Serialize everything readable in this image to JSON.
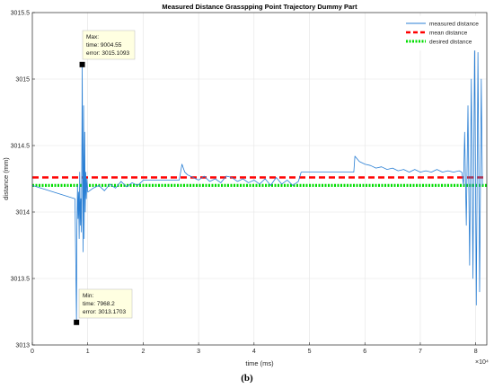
{
  "chart_data": {
    "type": "line",
    "title": "Measured Distance Grasspping Point Trajectory Dummy Part",
    "xlabel": "time (ms)",
    "ylabel": "distance (mm)",
    "xlim": [
      0,
      82000
    ],
    "ylim": [
      3013,
      3015.5
    ],
    "x_ticks": [
      0,
      1,
      2,
      3,
      4,
      5,
      6,
      7,
      8
    ],
    "x_tick_labels": [
      "0",
      "1",
      "2",
      "3",
      "4",
      "5",
      "6",
      "7",
      "8"
    ],
    "x_exponent_label": "×10⁴",
    "y_ticks": [
      3013,
      3013.5,
      3014,
      3014.5,
      3015,
      3015.5
    ],
    "y_tick_labels": [
      "3013",
      "3013.5",
      "3014",
      "3014.5",
      "3015",
      "3015.5"
    ],
    "grid": true,
    "legend_position": "top-right",
    "series": [
      {
        "name": "measured distance",
        "color": "#2a7fd4",
        "style": "solid",
        "x": [
          0,
          7700,
          7968.2,
          8050,
          8150,
          8250,
          8350,
          8450,
          8550,
          8650,
          8750,
          8850,
          8950,
          9004.55,
          9080,
          9150,
          9250,
          9350,
          9450,
          9550,
          9650,
          9750,
          9850,
          10000,
          11000,
          12000,
          13000,
          14000,
          15000,
          16000,
          17000,
          18000,
          19000,
          19800,
          20000,
          26500,
          27000,
          27500,
          28000,
          29000,
          30000,
          31000,
          32000,
          33000,
          34000,
          35000,
          36000,
          37000,
          38000,
          39000,
          40000,
          41000,
          42000,
          43000,
          44000,
          45000,
          46000,
          47000,
          48000,
          48500,
          48600,
          58000,
          58200,
          59000,
          60000,
          61000,
          62000,
          63000,
          64000,
          65000,
          66000,
          67000,
          68000,
          69000,
          70000,
          71000,
          72000,
          73000,
          74000,
          75000,
          76000,
          77000,
          77500,
          77800,
          78000,
          78300,
          78600,
          78900,
          79200,
          79500,
          79800,
          80100,
          80400,
          80700,
          81000,
          81200
        ],
        "y": [
          3014.2,
          3014.1,
          3013.17,
          3013.9,
          3014.2,
          3013.95,
          3014.15,
          3013.8,
          3014.3,
          3013.9,
          3014.1,
          3013.85,
          3014.6,
          3015.11,
          3014.3,
          3013.7,
          3014.8,
          3013.8,
          3014.6,
          3014.0,
          3014.3,
          3014.1,
          3014.25,
          3014.15,
          3014.18,
          3014.2,
          3014.16,
          3014.21,
          3014.18,
          3014.23,
          3014.19,
          3014.22,
          3014.2,
          3014.23,
          3014.24,
          3014.24,
          3014.36,
          3014.3,
          3014.28,
          3014.26,
          3014.24,
          3014.27,
          3014.23,
          3014.25,
          3014.22,
          3014.27,
          3014.26,
          3014.23,
          3014.25,
          3014.22,
          3014.24,
          3014.21,
          3014.25,
          3014.2,
          3014.26,
          3014.21,
          3014.24,
          3014.2,
          3014.23,
          3014.3,
          3014.3,
          3014.3,
          3014.42,
          3014.38,
          3014.36,
          3014.35,
          3014.33,
          3014.34,
          3014.32,
          3014.33,
          3014.31,
          3014.32,
          3014.3,
          3014.32,
          3014.3,
          3014.31,
          3014.3,
          3014.32,
          3014.3,
          3014.31,
          3014.3,
          3014.31,
          3014.3,
          3014.2,
          3014.6,
          3013.9,
          3014.8,
          3013.6,
          3015.0,
          3013.5,
          3015.3,
          3013.3,
          3015.2,
          3013.4,
          3015.0,
          3014.2
        ]
      },
      {
        "name": "mean distance",
        "color": "#ff0000",
        "style": "dashed",
        "x": [
          0,
          82000
        ],
        "y": [
          3014.26,
          3014.26
        ]
      },
      {
        "name": "desired distance",
        "color": "#00dd00",
        "style": "dotted",
        "x": [
          0,
          82000
        ],
        "y": [
          3014.2,
          3014.2
        ]
      }
    ],
    "annotations": [
      {
        "label": "Max:",
        "time_label": "time: 9004.55",
        "error_label": "error: 3015.1093",
        "x": 9004.55,
        "y": 3015.1093
      },
      {
        "label": "Min:",
        "time_label": "time: 7968.2",
        "error_label": "error: 3013.1703",
        "x": 7968.2,
        "y": 3013.1703
      }
    ]
  },
  "figure": {
    "caption": "(b)"
  }
}
